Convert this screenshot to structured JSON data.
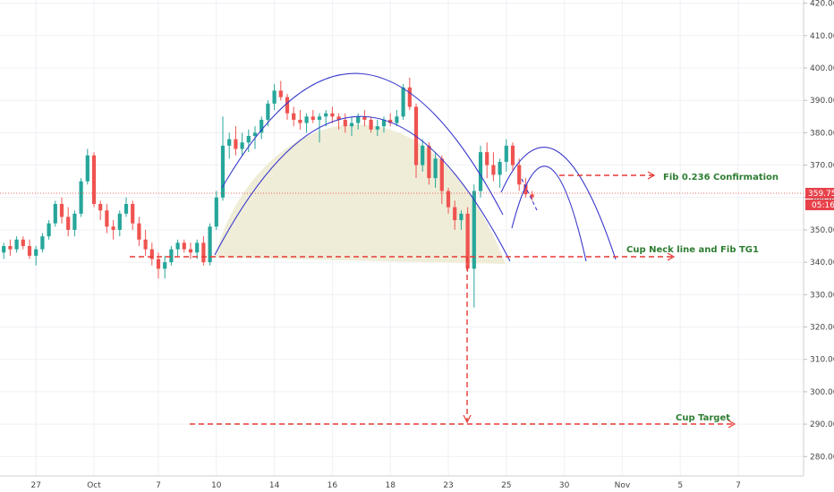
{
  "chart_data": {
    "type": "candlestick",
    "ylim": [
      274,
      421
    ],
    "y_ticks": [
      280,
      290,
      300,
      310,
      320,
      330,
      340,
      350,
      360,
      370,
      380,
      390,
      400,
      410,
      420
    ],
    "y_tick_labels": [
      "280.00",
      "290.00",
      "300.00",
      "310.00",
      "320.00",
      "330.00",
      "340.00",
      "350.00",
      "360.00",
      "370.00",
      "380.00",
      "390.00",
      "400.00",
      "410.00",
      "420.00"
    ],
    "x_ticks": [
      {
        "label": "27",
        "index": 6
      },
      {
        "label": "Oct",
        "index": 15
      },
      {
        "label": "7",
        "index": 25
      },
      {
        "label": "10",
        "index": 34
      },
      {
        "label": "14",
        "index": 43
      },
      {
        "label": "16",
        "index": 52
      },
      {
        "label": "18",
        "index": 61
      },
      {
        "label": "23",
        "index": 70
      },
      {
        "label": "25",
        "index": 79
      },
      {
        "label": "30",
        "index": 88
      },
      {
        "label": "Nov",
        "index": 97
      },
      {
        "label": "5",
        "index": 106
      },
      {
        "label": "7",
        "index": 115
      }
    ],
    "candles": [
      [
        342,
        345,
        340,
        343
      ],
      [
        343,
        346,
        341,
        345
      ],
      [
        345,
        347,
        342,
        344
      ],
      [
        344,
        348,
        343,
        347
      ],
      [
        347,
        348,
        344,
        345
      ],
      [
        345,
        347,
        341,
        342
      ],
      [
        342,
        345,
        339,
        344
      ],
      [
        344,
        349,
        343,
        348
      ],
      [
        348,
        353,
        347,
        352
      ],
      [
        352,
        359,
        351,
        358
      ],
      [
        358,
        360,
        352,
        354
      ],
      [
        354,
        357,
        348,
        350
      ],
      [
        350,
        356,
        348,
        355
      ],
      [
        355,
        366,
        354,
        365
      ],
      [
        365,
        375,
        364,
        373
      ],
      [
        373,
        374,
        357,
        358
      ],
      [
        358,
        359,
        353,
        356
      ],
      [
        356,
        358,
        349,
        351
      ],
      [
        351,
        353,
        347,
        350
      ],
      [
        350,
        356,
        348,
        355
      ],
      [
        355,
        360,
        354,
        358
      ],
      [
        358,
        359,
        350,
        352
      ],
      [
        352,
        354,
        345,
        347
      ],
      [
        347,
        350,
        342,
        344
      ],
      [
        344,
        346,
        339,
        341
      ],
      [
        341,
        343,
        335,
        338
      ],
      [
        338,
        342,
        335,
        340
      ],
      [
        340,
        345,
        339,
        344
      ],
      [
        344,
        347,
        342,
        346
      ],
      [
        346,
        347,
        343,
        344
      ],
      [
        344,
        346,
        341,
        343
      ],
      [
        343,
        347,
        341,
        346
      ],
      [
        346,
        348,
        339,
        340
      ],
      [
        340,
        352,
        339,
        351
      ],
      [
        351,
        362,
        350,
        360
      ],
      [
        360,
        385,
        359,
        376
      ],
      [
        376,
        380,
        372,
        378
      ],
      [
        378,
        382,
        373,
        375
      ],
      [
        375,
        380,
        373,
        377
      ],
      [
        377,
        381,
        374,
        379
      ],
      [
        379,
        382,
        375,
        380
      ],
      [
        380,
        385,
        378,
        384
      ],
      [
        384,
        390,
        382,
        389
      ],
      [
        389,
        395,
        387,
        393
      ],
      [
        393,
        396,
        390,
        391
      ],
      [
        391,
        392,
        384,
        386
      ],
      [
        386,
        388,
        382,
        384
      ],
      [
        384,
        387,
        381,
        383
      ],
      [
        383,
        386,
        380,
        385
      ],
      [
        385,
        387,
        383,
        384
      ],
      [
        384,
        386,
        377,
        385
      ],
      [
        385,
        387,
        382,
        386
      ],
      [
        386,
        388,
        383,
        385
      ],
      [
        385,
        386,
        381,
        384
      ],
      [
        384,
        386,
        380,
        382
      ],
      [
        382,
        385,
        379,
        383
      ],
      [
        383,
        386,
        381,
        385
      ],
      [
        385,
        387,
        382,
        384
      ],
      [
        384,
        385,
        380,
        381
      ],
      [
        381,
        384,
        379,
        382
      ],
      [
        382,
        385,
        380,
        384
      ],
      [
        384,
        386,
        382,
        383
      ],
      [
        383,
        387,
        382,
        385
      ],
      [
        385,
        395,
        384,
        394
      ],
      [
        394,
        397,
        387,
        388
      ],
      [
        388,
        389,
        366,
        370
      ],
      [
        370,
        378,
        368,
        376
      ],
      [
        376,
        377,
        364,
        366
      ],
      [
        366,
        374,
        363,
        372
      ],
      [
        372,
        373,
        358,
        362
      ],
      [
        362,
        363,
        355,
        357
      ],
      [
        357,
        359,
        350,
        353
      ],
      [
        353,
        356,
        350,
        355
      ],
      [
        355,
        357,
        337,
        338
      ],
      [
        338,
        364,
        326,
        362
      ],
      [
        362,
        376,
        360,
        374
      ],
      [
        374,
        377,
        366,
        370
      ],
      [
        370,
        374,
        365,
        367
      ],
      [
        367,
        372,
        363,
        371
      ],
      [
        371,
        378,
        368,
        376
      ],
      [
        376,
        377,
        368,
        370
      ],
      [
        370,
        372,
        362,
        364
      ],
      [
        364,
        366,
        360,
        361
      ],
      [
        361,
        362,
        359,
        360
      ]
    ]
  },
  "annotations": {
    "fib_confirmation": "Fib 0.236 Confirmation",
    "neck_line": "Cup Neck line and Fib TG1",
    "cup_target": "Cup Target"
  },
  "price_badge": {
    "price": "359.75",
    "countdown": "05:16"
  },
  "colors": {
    "up": "#26a69a",
    "down": "#ef5350",
    "arc": "#3a3acc",
    "annot": "#e53935",
    "cup_fill": "#efedd8",
    "badge": "#e8424b"
  }
}
